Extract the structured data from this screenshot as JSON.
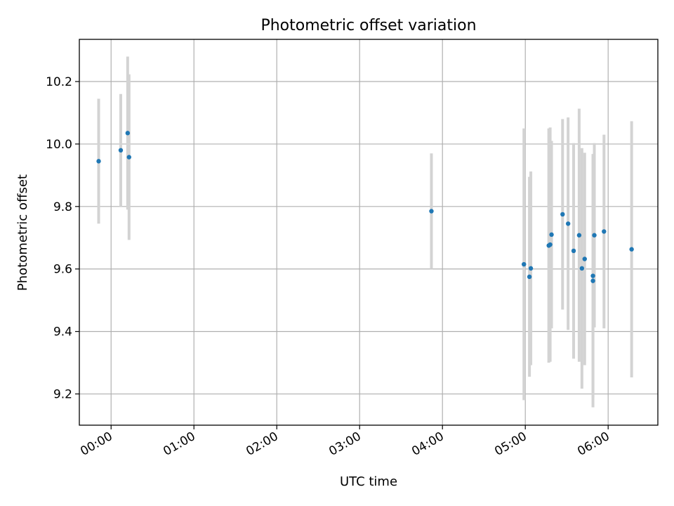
{
  "chart_data": {
    "type": "scatter",
    "title": "Photometric offset variation",
    "xlabel": "UTC time",
    "ylabel": "Photometric offset",
    "x_unit": "UTC",
    "xlim": [
      "2000-01-01T23:37",
      "2000-01-02T06:36"
    ],
    "ylim": [
      9.1,
      10.335
    ],
    "x_ticks": [
      "00:00",
      "01:00",
      "02:00",
      "03:00",
      "04:00",
      "05:00",
      "06:00"
    ],
    "y_ticks": [
      9.2,
      9.4,
      9.6,
      9.8,
      10.0,
      10.2
    ],
    "grid": true,
    "colors": {
      "marker": "#1f77b4",
      "errorbar": "#d3d3d3",
      "grid": "#b0b0b0"
    },
    "series": [
      {
        "points": [
          {
            "x": "2000-01-01T23:51",
            "y": 9.945,
            "err": 0.2
          },
          {
            "x": "2000-01-02T00:07",
            "y": 9.98,
            "err": 0.18
          },
          {
            "x": "2000-01-02T00:12",
            "y": 10.035,
            "err": 0.245
          },
          {
            "x": "2000-01-02T00:13",
            "y": 9.958,
            "err": 0.265
          },
          {
            "x": "2000-01-02T03:52",
            "y": 9.785,
            "err": 0.185
          },
          {
            "x": "2000-01-02T04:59",
            "y": 9.615,
            "err": 0.435
          },
          {
            "x": "2000-01-02T05:03",
            "y": 9.575,
            "err": 0.32
          },
          {
            "x": "2000-01-02T05:04",
            "y": 9.602,
            "err": 0.31
          },
          {
            "x": "2000-01-02T05:17",
            "y": 9.675,
            "err": 0.375
          },
          {
            "x": "2000-01-02T05:18",
            "y": 9.678,
            "err": 0.375
          },
          {
            "x": "2000-01-02T05:19",
            "y": 9.71,
            "err": 0.3
          },
          {
            "x": "2000-01-02T05:27",
            "y": 9.775,
            "err": 0.305
          },
          {
            "x": "2000-01-02T05:31",
            "y": 9.745,
            "err": 0.34
          },
          {
            "x": "2000-01-02T05:35",
            "y": 9.658,
            "err": 0.345
          },
          {
            "x": "2000-01-02T05:39",
            "y": 9.708,
            "err": 0.405
          },
          {
            "x": "2000-01-02T05:41",
            "y": 9.602,
            "err": 0.385
          },
          {
            "x": "2000-01-02T05:43",
            "y": 9.632,
            "err": 0.34
          },
          {
            "x": "2000-01-02T05:49",
            "y": 9.578,
            "err": 0.39
          },
          {
            "x": "2000-01-02T05:49",
            "y": 9.562,
            "err": 0.405
          },
          {
            "x": "2000-01-02T05:50",
            "y": 9.708,
            "err": 0.295
          },
          {
            "x": "2000-01-02T05:57",
            "y": 9.72,
            "err": 0.31
          },
          {
            "x": "2000-01-02T06:17",
            "y": 9.663,
            "err": 0.41
          }
        ]
      }
    ]
  }
}
